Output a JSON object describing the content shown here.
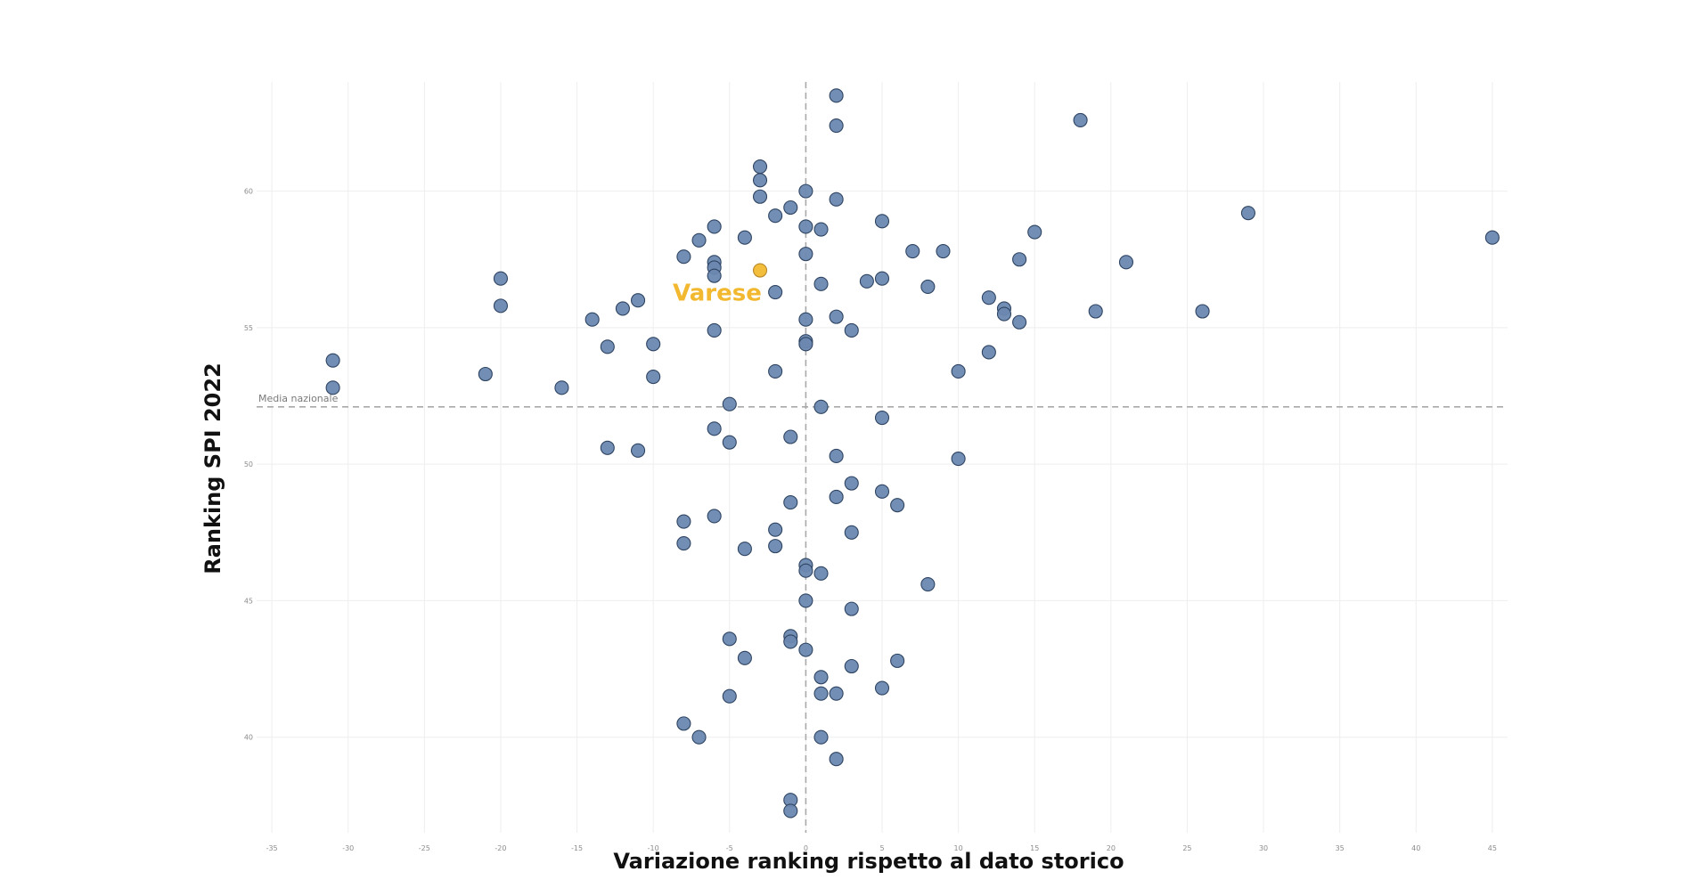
{
  "chart_data": {
    "type": "scatter",
    "xlabel": "Variazione ranking rispetto al dato storico",
    "ylabel": "Ranking SPI 2022",
    "xlim": [
      -36,
      46
    ],
    "ylim": [
      36.5,
      64
    ],
    "x_ticks": [
      -35,
      -30,
      -25,
      -20,
      -15,
      -10,
      -5,
      0,
      5,
      10,
      15,
      20,
      25,
      30,
      35,
      40,
      45
    ],
    "y_ticks": [
      40,
      45,
      50,
      55,
      60
    ],
    "reference_lines": {
      "national_average": {
        "label": "Media nazionale",
        "y": 52.1
      },
      "zero_change": {
        "x": 0
      }
    },
    "highlight": {
      "label": "Varese",
      "x": -3,
      "y": 57.1
    },
    "colors": {
      "point_fill": "#6b88b0",
      "point_stroke": "#2e4462",
      "highlight_fill": "#f2be3c",
      "highlight_stroke": "#b8892a",
      "highlight_text": "#f2b830",
      "grid": "#eeeeee",
      "ref_line": "#a9a9a9"
    },
    "points": [
      {
        "x": 2,
        "y": 63.5
      },
      {
        "x": 2,
        "y": 62.4
      },
      {
        "x": 18,
        "y": 62.6
      },
      {
        "x": -3,
        "y": 60.9
      },
      {
        "x": -3,
        "y": 60.4
      },
      {
        "x": -3,
        "y": 59.8
      },
      {
        "x": 0,
        "y": 60.0
      },
      {
        "x": 2,
        "y": 59.7
      },
      {
        "x": -1,
        "y": 59.4
      },
      {
        "x": -2,
        "y": 59.1
      },
      {
        "x": 5,
        "y": 58.9
      },
      {
        "x": 29,
        "y": 59.2
      },
      {
        "x": 45,
        "y": 58.3
      },
      {
        "x": -6,
        "y": 58.7
      },
      {
        "x": -7,
        "y": 58.2
      },
      {
        "x": -4,
        "y": 58.3
      },
      {
        "x": 0,
        "y": 58.7
      },
      {
        "x": 1,
        "y": 58.6
      },
      {
        "x": 15,
        "y": 58.5
      },
      {
        "x": -8,
        "y": 57.6
      },
      {
        "x": -6,
        "y": 57.4
      },
      {
        "x": -6,
        "y": 57.2
      },
      {
        "x": -6,
        "y": 56.9
      },
      {
        "x": 0,
        "y": 57.7
      },
      {
        "x": 7,
        "y": 57.8
      },
      {
        "x": 9,
        "y": 57.8
      },
      {
        "x": 14,
        "y": 57.5
      },
      {
        "x": 21,
        "y": 57.4
      },
      {
        "x": -20,
        "y": 56.8
      },
      {
        "x": -20,
        "y": 55.8
      },
      {
        "x": 1,
        "y": 56.6
      },
      {
        "x": 4,
        "y": 56.7
      },
      {
        "x": 5,
        "y": 56.8
      },
      {
        "x": 8,
        "y": 56.5
      },
      {
        "x": -2,
        "y": 56.3
      },
      {
        "x": 12,
        "y": 56.1
      },
      {
        "x": -11,
        "y": 56.0
      },
      {
        "x": -12,
        "y": 55.7
      },
      {
        "x": 13,
        "y": 55.7
      },
      {
        "x": 13,
        "y": 55.5
      },
      {
        "x": 19,
        "y": 55.6
      },
      {
        "x": 26,
        "y": 55.6
      },
      {
        "x": -14,
        "y": 55.3
      },
      {
        "x": 0,
        "y": 55.3
      },
      {
        "x": 2,
        "y": 55.4
      },
      {
        "x": 14,
        "y": 55.2
      },
      {
        "x": -6,
        "y": 54.9
      },
      {
        "x": 3,
        "y": 54.9
      },
      {
        "x": -10,
        "y": 54.4
      },
      {
        "x": -13,
        "y": 54.3
      },
      {
        "x": 0,
        "y": 54.5
      },
      {
        "x": 0,
        "y": 54.4
      },
      {
        "x": 12,
        "y": 54.1
      },
      {
        "x": -31,
        "y": 53.8
      },
      {
        "x": -31,
        "y": 52.8
      },
      {
        "x": -21,
        "y": 53.3
      },
      {
        "x": -10,
        "y": 53.2
      },
      {
        "x": -2,
        "y": 53.4
      },
      {
        "x": 10,
        "y": 53.4
      },
      {
        "x": -16,
        "y": 52.8
      },
      {
        "x": -5,
        "y": 52.2
      },
      {
        "x": 1,
        "y": 52.1
      },
      {
        "x": 5,
        "y": 51.7
      },
      {
        "x": -6,
        "y": 51.3
      },
      {
        "x": -5,
        "y": 50.8
      },
      {
        "x": -1,
        "y": 51.0
      },
      {
        "x": -13,
        "y": 50.6
      },
      {
        "x": -11,
        "y": 50.5
      },
      {
        "x": 2,
        "y": 50.3
      },
      {
        "x": 10,
        "y": 50.2
      },
      {
        "x": 3,
        "y": 49.3
      },
      {
        "x": 2,
        "y": 48.8
      },
      {
        "x": 5,
        "y": 49.0
      },
      {
        "x": -1,
        "y": 48.6
      },
      {
        "x": 6,
        "y": 48.5
      },
      {
        "x": -6,
        "y": 48.1
      },
      {
        "x": -8,
        "y": 47.9
      },
      {
        "x": -2,
        "y": 47.6
      },
      {
        "x": 3,
        "y": 47.5
      },
      {
        "x": -8,
        "y": 47.1
      },
      {
        "x": -4,
        "y": 46.9
      },
      {
        "x": -2,
        "y": 47.0
      },
      {
        "x": 0,
        "y": 46.3
      },
      {
        "x": 0,
        "y": 46.1
      },
      {
        "x": 1,
        "y": 46.0
      },
      {
        "x": 8,
        "y": 45.6
      },
      {
        "x": 0,
        "y": 45.0
      },
      {
        "x": 3,
        "y": 44.7
      },
      {
        "x": -5,
        "y": 43.6
      },
      {
        "x": -1,
        "y": 43.7
      },
      {
        "x": -1,
        "y": 43.5
      },
      {
        "x": 0,
        "y": 43.2
      },
      {
        "x": -4,
        "y": 42.9
      },
      {
        "x": 6,
        "y": 42.8
      },
      {
        "x": 3,
        "y": 42.6
      },
      {
        "x": 1,
        "y": 42.2
      },
      {
        "x": 5,
        "y": 41.8
      },
      {
        "x": -5,
        "y": 41.5
      },
      {
        "x": 1,
        "y": 41.6
      },
      {
        "x": 2,
        "y": 41.6
      },
      {
        "x": -8,
        "y": 40.5
      },
      {
        "x": -7,
        "y": 40.0
      },
      {
        "x": 1,
        "y": 40.0
      },
      {
        "x": 2,
        "y": 39.2
      },
      {
        "x": -1,
        "y": 37.7
      },
      {
        "x": -1,
        "y": 37.3
      }
    ]
  }
}
